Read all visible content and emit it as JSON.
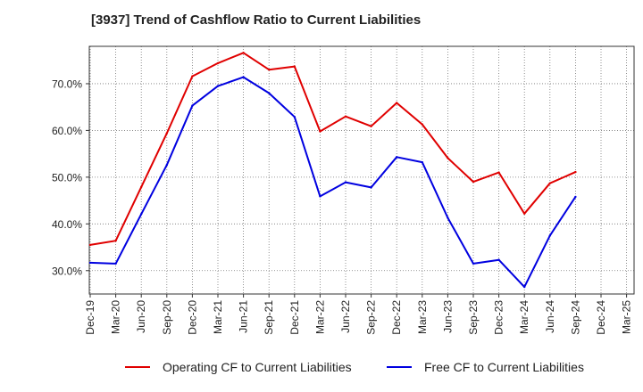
{
  "chart_data": {
    "type": "line",
    "title": "[3937]  Trend of Cashflow Ratio to Current Liabilities",
    "xlabel": "",
    "ylabel": "",
    "categories": [
      "Dec-19",
      "Mar-20",
      "Jun-20",
      "Sep-20",
      "Dec-20",
      "Mar-21",
      "Jun-21",
      "Sep-21",
      "Dec-21",
      "Mar-22",
      "Jun-22",
      "Sep-22",
      "Dec-22",
      "Mar-23",
      "Jun-23",
      "Sep-23",
      "Dec-23",
      "Mar-24",
      "Jun-24",
      "Sep-24",
      "Dec-24",
      "Mar-25"
    ],
    "ylim": [
      25,
      78
    ],
    "y_ticks": [
      30,
      40,
      50,
      60,
      70
    ],
    "y_tick_labels": [
      "30.0%",
      "40.0%",
      "50.0%",
      "60.0%",
      "70.0%"
    ],
    "grid": true,
    "legend_position": "bottom",
    "series": [
      {
        "name": "Operating CF to Current Liabilities",
        "color": "#e00000",
        "values": [
          35.5,
          36.4,
          47.9,
          59.4,
          71.6,
          74.4,
          76.6,
          73.0,
          73.7,
          59.8,
          63.0,
          60.9,
          65.9,
          61.3,
          54.1,
          49.0,
          51.0,
          42.2,
          48.7,
          51.1,
          null,
          null
        ]
      },
      {
        "name": "Free CF to Current Liabilities",
        "color": "#0000e0",
        "values": [
          31.7,
          31.5,
          42.1,
          52.6,
          65.3,
          69.5,
          71.4,
          68.0,
          62.9,
          45.9,
          48.9,
          47.8,
          54.3,
          53.2,
          41.3,
          31.5,
          32.3,
          26.5,
          37.5,
          45.8,
          null,
          null
        ]
      }
    ]
  }
}
